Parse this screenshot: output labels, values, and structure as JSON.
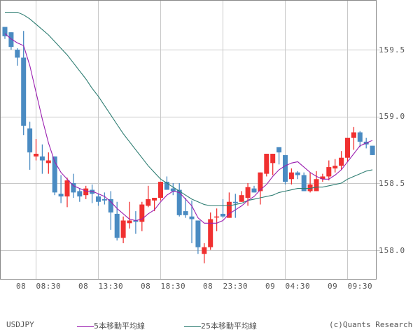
{
  "chart_data": {
    "type": "candlestick",
    "title": "USDJPY",
    "symbol": "USDJPY",
    "ylim": [
      157.82,
      159.87
    ],
    "y_ticks": [
      158.0,
      158.5,
      159.0,
      159.5
    ],
    "y_tick_labels": [
      "158.0",
      "158.5",
      "159.0",
      "159.5"
    ],
    "x_tick_labels": [
      "08  08:30",
      "08  13:30",
      "08  18:30",
      "08  23:30",
      "09  04:30",
      "09  09:30"
    ],
    "grid": true,
    "legend": [
      {
        "name": "5本移動平均線",
        "color": "#9b1fb0"
      },
      {
        "name": "25本移動平均線",
        "color": "#2e7d72"
      }
    ],
    "colors": {
      "up": "#f03030",
      "down": "#4a8bc2",
      "grid": "#c8c8c8",
      "axis": "#888888",
      "ma5": "#9b1fb0",
      "ma25": "#2e7d72"
    },
    "candles": [
      {
        "o": 159.67,
        "c": 159.6,
        "h": 159.67,
        "l": 159.58
      },
      {
        "o": 159.63,
        "c": 159.52,
        "h": 159.63,
        "l": 159.5
      },
      {
        "o": 159.5,
        "c": 159.44,
        "h": 159.51,
        "l": 159.38
      },
      {
        "o": 159.44,
        "c": 158.93,
        "h": 159.64,
        "l": 158.86
      },
      {
        "o": 158.91,
        "c": 158.73,
        "h": 158.96,
        "l": 158.6
      },
      {
        "o": 158.7,
        "c": 158.72,
        "h": 158.83,
        "l": 158.67
      },
      {
        "o": 158.7,
        "c": 158.67,
        "h": 158.79,
        "l": 158.57
      },
      {
        "o": 158.65,
        "c": 158.67,
        "h": 158.73,
        "l": 158.57
      },
      {
        "o": 158.7,
        "c": 158.43,
        "h": 158.7,
        "l": 158.41
      },
      {
        "o": 158.42,
        "c": 158.4,
        "h": 158.56,
        "l": 158.35
      },
      {
        "o": 158.4,
        "c": 158.52,
        "h": 158.54,
        "l": 158.32
      },
      {
        "o": 158.5,
        "c": 158.43,
        "h": 158.57,
        "l": 158.39
      },
      {
        "o": 158.44,
        "c": 158.4,
        "h": 158.46,
        "l": 158.36
      },
      {
        "o": 158.41,
        "c": 158.46,
        "h": 158.48,
        "l": 158.38
      },
      {
        "o": 158.45,
        "c": 158.42,
        "h": 158.49,
        "l": 158.35
      },
      {
        "o": 158.4,
        "c": 158.36,
        "h": 158.42,
        "l": 158.33
      },
      {
        "o": 158.38,
        "c": 158.37,
        "h": 158.43,
        "l": 158.34
      },
      {
        "o": 158.38,
        "c": 158.28,
        "h": 158.44,
        "l": 158.15
      },
      {
        "o": 158.27,
        "c": 158.09,
        "h": 158.36,
        "l": 158.07
      },
      {
        "o": 158.09,
        "c": 158.22,
        "h": 158.25,
        "l": 158.05
      },
      {
        "o": 158.2,
        "c": 158.22,
        "h": 158.36,
        "l": 158.16
      },
      {
        "o": 158.22,
        "c": 158.21,
        "h": 158.29,
        "l": 158.12
      },
      {
        "o": 158.21,
        "c": 158.34,
        "h": 158.36,
        "l": 158.14
      },
      {
        "o": 158.33,
        "c": 158.38,
        "h": 158.48,
        "l": 158.32
      },
      {
        "o": 158.37,
        "c": 158.39,
        "h": 158.39,
        "l": 158.29
      },
      {
        "o": 158.39,
        "c": 158.51,
        "h": 158.51,
        "l": 158.37
      },
      {
        "o": 158.51,
        "c": 158.45,
        "h": 158.55,
        "l": 158.45
      },
      {
        "o": 158.46,
        "c": 158.44,
        "h": 158.5,
        "l": 158.41
      },
      {
        "o": 158.45,
        "c": 158.26,
        "h": 158.5,
        "l": 158.25
      },
      {
        "o": 158.29,
        "c": 158.26,
        "h": 158.39,
        "l": 158.24
      },
      {
        "o": 158.25,
        "c": 158.23,
        "h": 158.37,
        "l": 158.05
      },
      {
        "o": 158.22,
        "c": 158.02,
        "h": 158.22,
        "l": 157.97
      },
      {
        "o": 157.97,
        "c": 158.02,
        "h": 158.05,
        "l": 157.9
      },
      {
        "o": 158.02,
        "c": 158.23,
        "h": 158.28,
        "l": 158.0
      },
      {
        "o": 158.25,
        "c": 158.25,
        "h": 158.31,
        "l": 158.14
      },
      {
        "o": 158.27,
        "c": 158.25,
        "h": 158.38,
        "l": 158.24
      },
      {
        "o": 158.24,
        "c": 158.36,
        "h": 158.43,
        "l": 158.24
      },
      {
        "o": 158.36,
        "c": 158.35,
        "h": 158.42,
        "l": 158.24
      },
      {
        "o": 158.36,
        "c": 158.41,
        "h": 158.44,
        "l": 158.36
      },
      {
        "o": 158.39,
        "c": 158.47,
        "h": 158.5,
        "l": 158.33
      },
      {
        "o": 158.46,
        "c": 158.43,
        "h": 158.48,
        "l": 158.43
      },
      {
        "o": 158.44,
        "c": 158.58,
        "h": 158.58,
        "l": 158.34
      },
      {
        "o": 158.57,
        "c": 158.72,
        "h": 158.72,
        "l": 158.55
      },
      {
        "o": 158.65,
        "c": 158.72,
        "h": 158.72,
        "l": 158.56
      },
      {
        "o": 158.77,
        "c": 158.73,
        "h": 158.77,
        "l": 158.64
      },
      {
        "o": 158.71,
        "c": 158.51,
        "h": 158.71,
        "l": 158.49
      },
      {
        "o": 158.53,
        "c": 158.58,
        "h": 158.61,
        "l": 158.49
      },
      {
        "o": 158.58,
        "c": 158.56,
        "h": 158.59,
        "l": 158.53
      },
      {
        "o": 158.56,
        "c": 158.44,
        "h": 158.58,
        "l": 158.44
      },
      {
        "o": 158.44,
        "c": 158.49,
        "h": 158.58,
        "l": 158.43
      },
      {
        "o": 158.44,
        "c": 158.53,
        "h": 158.59,
        "l": 158.44
      },
      {
        "o": 158.53,
        "c": 158.55,
        "h": 158.57,
        "l": 158.51
      },
      {
        "o": 158.55,
        "c": 158.62,
        "h": 158.67,
        "l": 158.52
      },
      {
        "o": 158.61,
        "c": 158.63,
        "h": 158.68,
        "l": 158.58
      },
      {
        "o": 158.63,
        "c": 158.69,
        "h": 158.74,
        "l": 158.6
      },
      {
        "o": 158.69,
        "c": 158.84,
        "h": 158.84,
        "l": 158.66
      },
      {
        "o": 158.84,
        "c": 158.88,
        "h": 158.92,
        "l": 158.75
      },
      {
        "o": 158.88,
        "c": 158.81,
        "h": 158.89,
        "l": 158.77
      },
      {
        "o": 158.81,
        "c": 158.79,
        "h": 158.84,
        "l": 158.76
      },
      {
        "o": 158.78,
        "c": 158.71,
        "h": 158.78,
        "l": 158.71
      }
    ],
    "ma5": [
      159.62,
      159.58,
      159.55,
      159.53,
      159.38,
      159.18,
      158.98,
      158.8,
      158.66,
      158.58,
      158.53,
      158.48,
      158.46,
      158.44,
      158.44,
      158.42,
      158.4,
      158.36,
      158.31,
      158.27,
      158.23,
      158.22,
      158.23,
      158.27,
      158.3,
      158.36,
      158.41,
      158.44,
      158.43,
      158.38,
      158.33,
      158.24,
      158.2,
      158.2,
      158.2,
      158.22,
      158.27,
      158.3,
      158.33,
      158.37,
      158.4,
      158.45,
      158.49,
      158.55,
      158.6,
      158.63,
      158.65,
      158.66,
      158.62,
      158.58,
      158.55,
      158.53,
      158.53,
      158.56,
      158.6,
      158.66,
      158.72,
      158.78,
      158.8,
      158.82
    ],
    "ma25": [
      159.78,
      159.78,
      159.78,
      159.76,
      159.73,
      159.69,
      159.65,
      159.61,
      159.56,
      159.51,
      159.46,
      159.4,
      159.34,
      159.28,
      159.21,
      159.15,
      159.08,
      159.01,
      158.94,
      158.87,
      158.81,
      158.75,
      158.69,
      158.63,
      158.58,
      158.53,
      158.5,
      158.47,
      158.44,
      158.41,
      158.38,
      158.36,
      158.34,
      158.33,
      158.33,
      158.33,
      158.33,
      158.34,
      158.35,
      158.37,
      158.38,
      158.39,
      158.4,
      158.41,
      158.43,
      158.44,
      158.45,
      158.46,
      158.46,
      158.46,
      158.47,
      158.47,
      158.48,
      158.49,
      158.5,
      158.53,
      158.55,
      158.57,
      158.59,
      158.6
    ]
  },
  "footer": {
    "symbol": "USDJPY",
    "legend_ma5": "5本移動平均線",
    "legend_ma25": "25本移動平均線",
    "copyright": "(c)Quants Research"
  }
}
